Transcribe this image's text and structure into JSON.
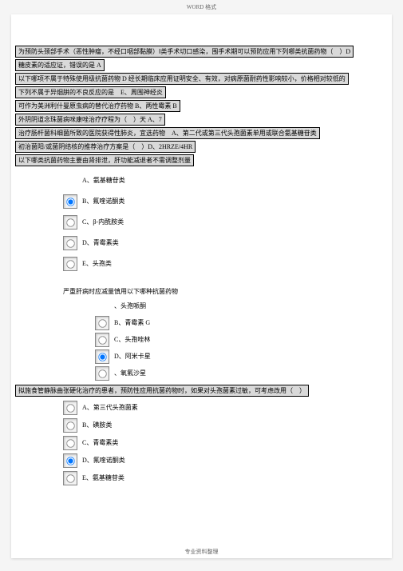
{
  "header_marker": "WORD 格式",
  "bars": [
    "为预防头颈部手术（恶性肿瘤，不经口咽部黏膜）Ⅰ类手术切口感染，围手术期可以预防应用下列哪类抗菌药物（　）D",
    "糖皮素的适应证，错误的是 A",
    "以下哪项不属于特殊使用级抗菌药物 D 经长期临床应用证明安全、有效，对病原菌耐药性影响较小，价格相对较低的",
    "下列不属于异烟肼的不良反应的是　E、周围神经炎",
    "可作为美洲利什曼原虫病的替代治疗药物 B、两性霉素 B",
    "外阴阴道念珠菌病咪康唑治疗疗程为（　）天 A、7",
    "治疗肠杆菌科细菌所致的医院获得性肺炎，宜选药物　A、第二代或第三代头孢菌素单用或联合氨基糖苷类",
    "初治菌阳/或菌阴结核的推荐治疗方案是（　）D、2HRZE/4HR",
    "以下哪类抗菌药物主要由肾排泄，肝功能减退者不需调整剂量"
  ],
  "q1_options": [
    {
      "label": "A、氨基糖苷类",
      "radio": false,
      "checked": false
    },
    {
      "label": "B、氟喹诺酮类",
      "radio": true,
      "checked": true
    },
    {
      "label": "C、β-内酰胺类",
      "radio": true,
      "checked": false
    },
    {
      "label": "D、青霉素类",
      "radio": true,
      "checked": false
    },
    {
      "label": "E、头孢类",
      "radio": true,
      "checked": false
    }
  ],
  "q2_text": "严重肝病时应减量慎用以下哪种抗菌药物",
  "q2_options": [
    {
      "label": "、头孢哌酮",
      "radio": false,
      "checked": false
    },
    {
      "label": "B、青霉素 G",
      "radio": true,
      "checked": false
    },
    {
      "label": "C、头孢唑林",
      "radio": true,
      "checked": false
    },
    {
      "label": "D、阿米卡星",
      "radio": true,
      "checked": true
    },
    {
      "label": "、氧氟沙星",
      "radio": true,
      "checked": false
    }
  ],
  "bar_last": "拟施食管静脉曲张硬化治疗的患者，预防性应用抗菌药物时，如果对头孢菌素过敏，可考虑改用（　）",
  "q3_options": [
    {
      "label": "A、第三代头孢菌素",
      "radio": true,
      "checked": false
    },
    {
      "label": "B、磺胺类",
      "radio": true,
      "checked": false
    },
    {
      "label": "C、青霉素类",
      "radio": true,
      "checked": false
    },
    {
      "label": "D、氟喹诺酮类",
      "radio": true,
      "checked": true
    },
    {
      "label": "E、氨基糖苷类",
      "radio": true,
      "checked": false
    }
  ],
  "footer": "专业资料整理"
}
